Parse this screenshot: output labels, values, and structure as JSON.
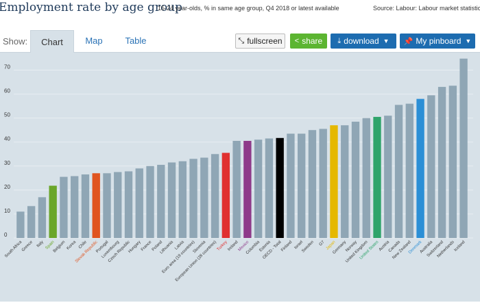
{
  "header": {
    "title": "Employment rate by age group",
    "subtitle": "15-24 year-olds, % in same age group, Q4 2018 or latest available",
    "source": "Source: Labour: Labour market statistic"
  },
  "toolbar": {
    "show_label": "Show:",
    "tabs": [
      {
        "label": "Chart",
        "active": true
      },
      {
        "label": "Map",
        "active": false
      },
      {
        "label": "Table",
        "active": false
      }
    ],
    "fullscreen_label": "fullscreen",
    "share_label": "share",
    "download_label": "download",
    "pinboard_label": "My pinboard"
  },
  "colors": {
    "default_bar": "#8fa6b5",
    "chart_bg": "#d7e1e8",
    "spain": "#6aa629",
    "slovak_republic": "#e0541f",
    "turkey": "#e03030",
    "mexico": "#8e3a8a",
    "oecd_total": "#000000",
    "japan": "#e5b800",
    "united_states": "#2fa46b",
    "denmark": "#2b8fd6"
  },
  "chart_data": {
    "type": "bar",
    "title": "Employment rate by age group",
    "ylim": [
      0,
      75
    ],
    "yticks": [
      0,
      10,
      20,
      30,
      40,
      50,
      60,
      70
    ],
    "categories": [
      "South Africa",
      "Greece",
      "Italy",
      "Spain",
      "Belgium",
      "Korea",
      "Chile",
      "Slovak Republic",
      "Portugal",
      "Luxembourg",
      "Czech Republic",
      "Hungary",
      "France",
      "Poland",
      "Lithuania",
      "Latvia",
      "Euro area (19 countries)",
      "Slovenia",
      "European Union (28 countries)",
      "Turkey",
      "Ireland",
      "Mexico",
      "Colombia",
      "Estonia",
      "OECD - Total",
      "Finland",
      "Israel",
      "Sweden",
      "G7",
      "Japan",
      "Germany",
      "Norway",
      "United Kingdom",
      "United States",
      "Austria",
      "Canada",
      "New Zealand",
      "Denmark",
      "Australia",
      "Switzerland",
      "Netherlands",
      "Iceland"
    ],
    "values": [
      11.0,
      13.3,
      17.0,
      21.8,
      25.5,
      25.8,
      26.5,
      27.0,
      27.0,
      27.5,
      27.8,
      29.0,
      30.0,
      30.5,
      31.5,
      32.0,
      33.0,
      33.5,
      35.0,
      35.5,
      40.5,
      40.5,
      41.0,
      41.5,
      41.7,
      43.5,
      43.5,
      45.0,
      45.5,
      47.0,
      47.0,
      48.5,
      50.0,
      50.5,
      51.0,
      55.5,
      56.0,
      58.0,
      59.5,
      63.0,
      63.5,
      74.8
    ],
    "highlight": {
      "Spain": "#6aa629",
      "Slovak Republic": "#e0541f",
      "Turkey": "#e03030",
      "Mexico": "#8e3a8a",
      "OECD - Total": "#000000",
      "Japan": "#e5b800",
      "United States": "#2fa46b",
      "Denmark": "#2b8fd6"
    },
    "label_colors": {
      "Spain": "#6aa629",
      "Slovak Republic": "#e0541f",
      "Turkey": "#e03030",
      "Mexico": "#8e3a8a",
      "Japan": "#e5b800",
      "United States": "#2fa46b",
      "Denmark": "#2b8fd6"
    },
    "grid": true,
    "legend": "none"
  }
}
